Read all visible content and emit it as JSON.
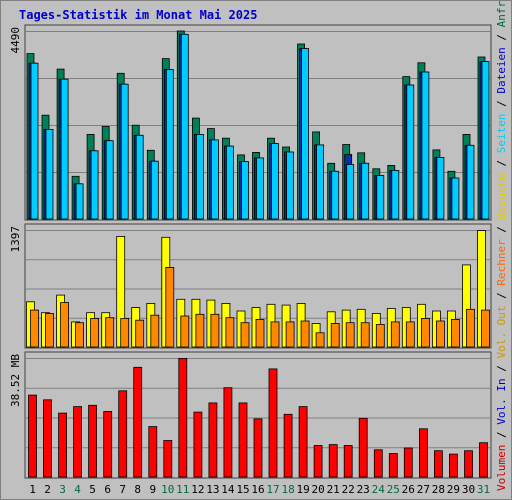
{
  "chart_data": {
    "type": "bar",
    "title": "Tages-Statistik im Monat Mai 2025",
    "days": [
      "1",
      "2",
      "3",
      "4",
      "5",
      "6",
      "7",
      "8",
      "9",
      "10",
      "11",
      "12",
      "13",
      "14",
      "15",
      "16",
      "17",
      "18",
      "19",
      "20",
      "21",
      "22",
      "23",
      "24",
      "25",
      "26",
      "27",
      "28",
      "29",
      "30",
      "31"
    ],
    "weekend_days": [
      "3",
      "4",
      "10",
      "11",
      "17",
      "18",
      "24",
      "25",
      "31"
    ],
    "colors": {
      "title": "#0000cc",
      "weekday": "#000000",
      "weekend": "#006b3a",
      "anfragen": "#006b3a",
      "dateien": "#0000cc",
      "seiten": "#00ccff",
      "besuche": "#e6c800",
      "rechner": "#ff6600",
      "volumen": "#cc0000"
    },
    "panels": [
      {
        "id": "top",
        "ymax_label": "4490",
        "ymax": 4490,
        "series": [
          {
            "name": "Anfragen",
            "color": "#00805a",
            "values": [
              3950,
              2480,
              3580,
              1020,
              2020,
              2210,
              3480,
              2240,
              1640,
              3830,
              4490,
              2410,
              2160,
              1930,
              1530,
              1590,
              1930,
              1720,
              4180,
              2080,
              1330,
              1780,
              1580,
              1200,
              1280,
              3400,
              3730,
              1650,
              1140,
              2020,
              3870
            ]
          },
          {
            "name": "Dateien",
            "color": "#0033aa",
            "values": [
              3720,
              2140,
              3340,
              840,
              1630,
              1870,
              3220,
              2000,
              1380,
              3570,
              4410,
              2020,
              1890,
              1740,
              1370,
              1460,
              1800,
              1600,
              4070,
              1770,
              1140,
              1540,
              1330,
              1040,
              1160,
              3200,
              3510,
              1470,
              980,
              1760,
              3760
            ]
          },
          {
            "name": "Seiten",
            "color": "#00ccff",
            "values": [
              3720,
              2140,
              3340,
              840,
              1630,
              1870,
              3220,
              2000,
              1380,
              3570,
              4410,
              2020,
              1890,
              1740,
              1370,
              1460,
              1800,
              1600,
              4070,
              1770,
              1140,
              1300,
              1330,
              1040,
              1160,
              3200,
              3510,
              1470,
              980,
              1760,
              3760
            ]
          }
        ]
      },
      {
        "id": "middle",
        "ymax_label": "1397",
        "ymax": 1397,
        "series": [
          {
            "name": "Besuche",
            "color": "#ffff00",
            "values": [
              540,
              410,
              620,
              300,
              410,
              410,
              1320,
              470,
              520,
              1310,
              570,
              570,
              560,
              520,
              430,
              470,
              510,
              500,
              520,
              280,
              420,
              440,
              450,
              400,
              460,
              470,
              510,
              430,
              430,
              980,
              1390
            ]
          },
          {
            "name": "Rechner",
            "color": "#ff8800",
            "values": [
              440,
              400,
              530,
              290,
              340,
              350,
              340,
              320,
              380,
              950,
              370,
              390,
              390,
              350,
              290,
              330,
              300,
              300,
              310,
              170,
              280,
              290,
              290,
              270,
              300,
              300,
              340,
              310,
              330,
              450,
              440
            ]
          }
        ]
      },
      {
        "id": "bottom",
        "ymax_label": "38.52 MB",
        "ymax": 38.52,
        "series": [
          {
            "name": "Volumen",
            "color": "#ff0000",
            "values": [
              26.5,
              25.0,
              20.7,
              22.8,
              23.2,
              21.2,
              27.9,
              35.5,
              16.3,
              11.8,
              38.4,
              21.0,
              24.0,
              28.9,
              24.0,
              18.8,
              35.0,
              20.3,
              22.8,
              10.2,
              10.5,
              10.2,
              19.0,
              8.8,
              7.6,
              9.4,
              15.6,
              8.5,
              7.4,
              8.5,
              11.1
            ]
          }
        ]
      }
    ],
    "legend": [
      {
        "text": "Volumen",
        "color": "#cc0000"
      },
      {
        "text": " / ",
        "color": "#000000"
      },
      {
        "text": "Vol. In",
        "color": "#0000cc"
      },
      {
        "text": " / ",
        "color": "#000000"
      },
      {
        "text": "Vol. Out",
        "color": "#cc9900"
      },
      {
        "text": " / ",
        "color": "#000000"
      },
      {
        "text": "Rechner",
        "color": "#ff6600"
      },
      {
        "text": " / ",
        "color": "#000000"
      },
      {
        "text": "Besuche",
        "color": "#e6c800"
      },
      {
        "text": " / ",
        "color": "#000000"
      },
      {
        "text": "Seiten",
        "color": "#00ccff"
      },
      {
        "text": " / ",
        "color": "#000000"
      },
      {
        "text": "Dateien",
        "color": "#0000cc"
      },
      {
        "text": " / ",
        "color": "#000000"
      },
      {
        "text": "Anfragen",
        "color": "#006b3a"
      }
    ]
  }
}
